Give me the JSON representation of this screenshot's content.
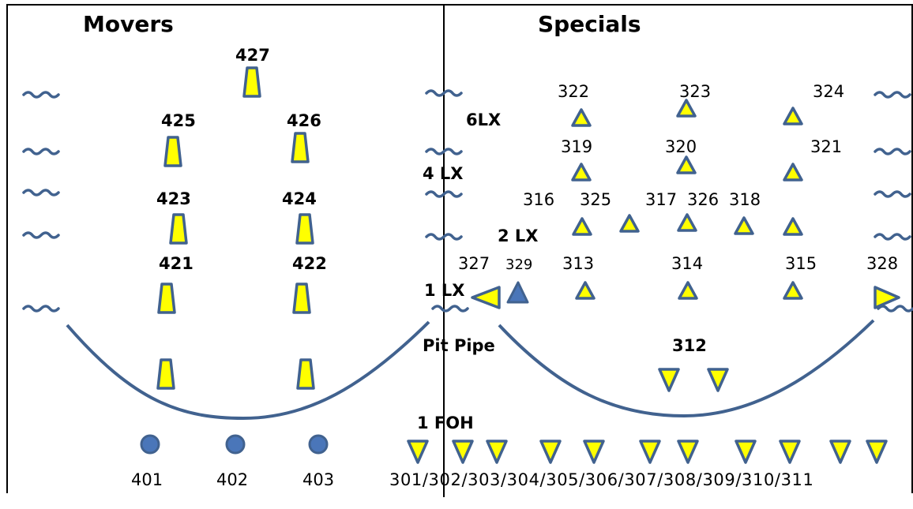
{
  "colors": {
    "fill": "#ffff00",
    "stroke": "#41628f",
    "dot": "#4a76b9",
    "line": "#41628f"
  },
  "sections": {
    "movers": "Movers",
    "specials": "Specials"
  },
  "pipes": {
    "six_lx": "6LX",
    "four_lx": "4 LX",
    "two_lx": "2 LX",
    "one_lx": "1 LX",
    "pit_pipe": "Pit Pipe",
    "one_foh": "1 FOH",
    "pit_special": "312"
  },
  "movers": {
    "labels": [
      "427",
      "425",
      "426",
      "423",
      "424",
      "421",
      "422"
    ],
    "floor_units": [
      "401",
      "402",
      "403"
    ]
  },
  "specials": {
    "labels": [
      "322",
      "323",
      "324",
      "319",
      "320",
      "321",
      "316",
      "325",
      "317",
      "326",
      "318",
      "327",
      "329",
      "313",
      "314",
      "315",
      "328"
    ]
  },
  "foh_units": "301/302/303/304/305/306/307/308/309/310/311",
  "icons": [
    "mover-fixture-icon",
    "spot-triangle-icon",
    "floor-unit-icon",
    "cable-squiggle-icon"
  ]
}
